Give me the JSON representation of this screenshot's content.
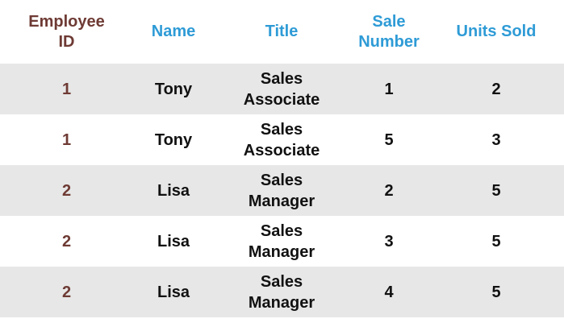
{
  "colors": {
    "key_column": "#6e3a34",
    "header_other": "#2e9bd6",
    "row_shade": "#e7e7e7",
    "cell_text": "#111111"
  },
  "table": {
    "columns": [
      "Employee\nID",
      "Name",
      "Title",
      "Sale\nNumber",
      "Units Sold"
    ],
    "rows": [
      {
        "shaded": true,
        "cells": [
          "1",
          "Tony",
          "Sales\nAssociate",
          "1",
          "2"
        ]
      },
      {
        "shaded": false,
        "cells": [
          "1",
          "Tony",
          "Sales\nAssociate",
          "5",
          "3"
        ]
      },
      {
        "shaded": true,
        "cells": [
          "2",
          "Lisa",
          "Sales\nManager",
          "2",
          "5"
        ]
      },
      {
        "shaded": false,
        "cells": [
          "2",
          "Lisa",
          "Sales\nManager",
          "3",
          "5"
        ]
      },
      {
        "shaded": true,
        "cells": [
          "2",
          "Lisa",
          "Sales\nManager",
          "4",
          "5"
        ]
      }
    ]
  }
}
